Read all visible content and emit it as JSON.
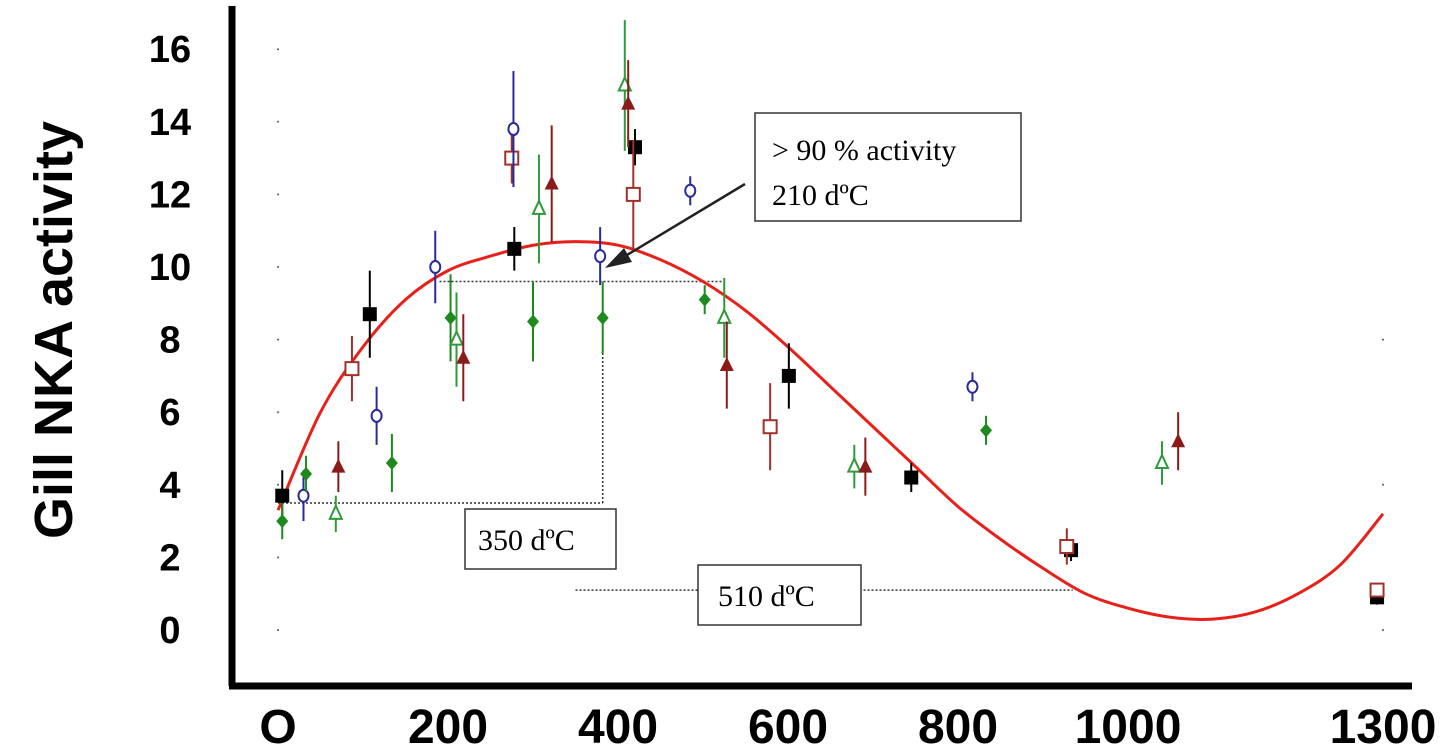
{
  "chart_data": {
    "type": "scatter",
    "title": "",
    "ylabel": "Gill NKA activity",
    "xlabel": "",
    "x_ticks": [
      "O",
      "200",
      "400",
      "600",
      "800",
      "1000",
      "1300"
    ],
    "y_ticks": [
      "0",
      "2",
      "4",
      "6",
      "8",
      "10",
      "12",
      "14",
      "16"
    ],
    "ylim": [
      -1.5,
      17
    ],
    "grid": false,
    "legend": "none",
    "colors": {
      "black_square": "#000000",
      "open_square": "#a0302a",
      "open_circle": "#2a2a9a",
      "green_diamond": "#1e8a1e",
      "open_triangle": "#2e9a3a",
      "dark_triangle": "#8b1a1a",
      "fit": "#e8201a"
    },
    "series": [
      {
        "marker": "filled-square",
        "color": "black_square",
        "points": [
          {
            "x": 5,
            "y": 3.7,
            "err": 0.7
          },
          {
            "x": 108,
            "y": 8.7,
            "err": 1.2
          },
          {
            "x": 278,
            "y": 10.5,
            "err": 0.6
          },
          {
            "x": 420,
            "y": 13.3,
            "err": 0.5
          },
          {
            "x": 601,
            "y": 7.0,
            "err": 0.9
          },
          {
            "x": 745,
            "y": 4.2,
            "err": 0.4
          },
          {
            "x": 933,
            "y": 2.2,
            "err": 0.3
          },
          {
            "x": 1293,
            "y": 0.9,
            "err": 0.2
          }
        ]
      },
      {
        "marker": "open-square",
        "color": "open_square",
        "points": [
          {
            "x": 87,
            "y": 7.2,
            "err": 0.9
          },
          {
            "x": 275,
            "y": 13.0,
            "err": 0.7
          },
          {
            "x": 418,
            "y": 12.0,
            "err": 1.5
          },
          {
            "x": 579,
            "y": 5.6,
            "err": 1.2
          },
          {
            "x": 928,
            "y": 2.3,
            "err": 0.5
          },
          {
            "x": 1293,
            "y": 1.1,
            "err": 0.2
          }
        ]
      },
      {
        "marker": "open-circle",
        "color": "open_circle",
        "points": [
          {
            "x": 30,
            "y": 3.7,
            "err": 0.7
          },
          {
            "x": 116,
            "y": 5.9,
            "err": 0.8
          },
          {
            "x": 185,
            "y": 10.0,
            "err": 1.0
          },
          {
            "x": 277,
            "y": 13.8,
            "err": 1.6
          },
          {
            "x": 379,
            "y": 10.3,
            "err": 0.8
          },
          {
            "x": 485,
            "y": 12.1,
            "err": 0.4
          },
          {
            "x": 817,
            "y": 6.7,
            "err": 0.4
          }
        ]
      },
      {
        "marker": "filled-diamond",
        "color": "green_diamond",
        "points": [
          {
            "x": 5,
            "y": 3.0,
            "err": 0.5
          },
          {
            "x": 33,
            "y": 4.3,
            "err": 0.5
          },
          {
            "x": 134,
            "y": 4.6,
            "err": 0.8
          },
          {
            "x": 203,
            "y": 8.6,
            "err": 1.2
          },
          {
            "x": 300,
            "y": 8.5,
            "err": 1.1
          },
          {
            "x": 382,
            "y": 8.6,
            "err": 1.0
          },
          {
            "x": 502,
            "y": 9.1,
            "err": 0.4
          },
          {
            "x": 833,
            "y": 5.5,
            "err": 0.4
          }
        ]
      },
      {
        "marker": "open-triangle",
        "color": "open_triangle",
        "points": [
          {
            "x": 68,
            "y": 3.2,
            "err": 0.5
          },
          {
            "x": 210,
            "y": 8.0,
            "err": 1.3
          },
          {
            "x": 307,
            "y": 11.6,
            "err": 1.5
          },
          {
            "x": 408,
            "y": 15.0,
            "err": 1.8
          },
          {
            "x": 525,
            "y": 8.6,
            "err": 1.1
          },
          {
            "x": 678,
            "y": 4.5,
            "err": 0.6
          },
          {
            "x": 1040,
            "y": 4.6,
            "err": 0.6
          }
        ]
      },
      {
        "marker": "filled-triangle",
        "color": "dark_triangle",
        "points": [
          {
            "x": 71,
            "y": 4.5,
            "err": 0.7
          },
          {
            "x": 218,
            "y": 7.5,
            "err": 1.2
          },
          {
            "x": 322,
            "y": 12.3,
            "err": 1.6
          },
          {
            "x": 412,
            "y": 14.5,
            "err": 1.2
          },
          {
            "x": 528,
            "y": 7.3,
            "err": 1.2
          },
          {
            "x": 691,
            "y": 4.5,
            "err": 0.8
          },
          {
            "x": 1059,
            "y": 5.2,
            "err": 0.8
          }
        ]
      }
    ],
    "fit_curve": {
      "label": "",
      "points": [
        [
          0,
          3.3
        ],
        [
          50,
          6.0
        ],
        [
          100,
          7.8
        ],
        [
          150,
          9.1
        ],
        [
          200,
          9.9
        ],
        [
          250,
          10.3
        ],
        [
          300,
          10.6
        ],
        [
          350,
          10.7
        ],
        [
          400,
          10.6
        ],
        [
          450,
          10.2
        ],
        [
          500,
          9.6
        ],
        [
          550,
          8.8
        ],
        [
          600,
          7.8
        ],
        [
          650,
          6.7
        ],
        [
          700,
          5.6
        ],
        [
          750,
          4.5
        ],
        [
          800,
          3.4
        ],
        [
          850,
          2.5
        ],
        [
          900,
          1.7
        ],
        [
          950,
          1.0
        ],
        [
          1000,
          0.6
        ],
        [
          1050,
          0.35
        ],
        [
          1100,
          0.3
        ],
        [
          1150,
          0.5
        ],
        [
          1200,
          1.0
        ],
        [
          1250,
          1.8
        ],
        [
          1300,
          3.2
        ]
      ]
    },
    "reference_lines": [
      {
        "kind": "horizontal",
        "y": 9.6,
        "x_from": 190,
        "x_to": 525
      },
      {
        "kind": "vertical",
        "x": 382,
        "y_from": 3.5,
        "y_to": 9.6
      },
      {
        "kind": "horizontal",
        "y": 3.5,
        "x_from": 0,
        "x_to": 382
      },
      {
        "kind": "horizontal",
        "y": 1.1,
        "x_from": 350,
        "x_to": 935
      }
    ],
    "annotations": [
      {
        "id": "ann_activity",
        "lines": [
          "> 90 % activity",
          "210 dºC"
        ]
      },
      {
        "id": "ann_350",
        "text": "350 dºC"
      },
      {
        "id": "ann_510",
        "text": "510 dºC"
      }
    ]
  }
}
